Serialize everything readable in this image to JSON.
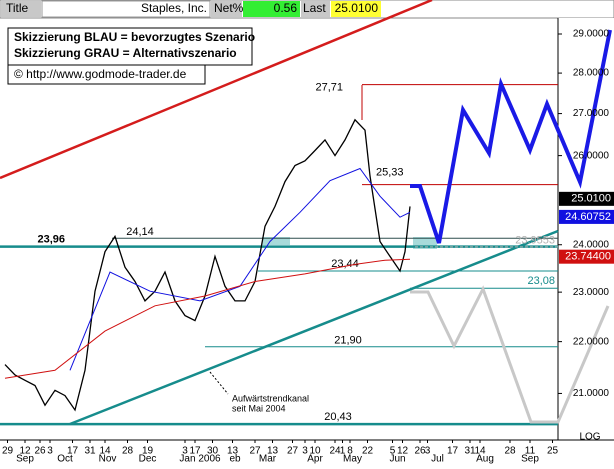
{
  "chart_data": {
    "type": "line",
    "header": {
      "title_label": "Title",
      "symbol": "Staples, Inc.",
      "net_label": "Net%",
      "net_value": 0.56,
      "last_label": "Last",
      "last_value": {
        "value": 25.01,
        "label": "25.0100"
      }
    },
    "legend_notes": [
      "Skizzierung BLAU = bevorzugtes Szenario",
      "Skizzierung GRAU = Alternativszenario"
    ],
    "copyright": "© http://www.godmode-trader.de",
    "annotation": [
      "Aufwärtstrendkanal",
      "seit Mai 2004"
    ],
    "log_scale": true,
    "log_label": "LOG",
    "xlim": [
      -2,
      221.2
    ],
    "xticks": [
      {
        "value": 1,
        "label": "29"
      },
      {
        "value": 8,
        "label": "12"
      },
      {
        "value": 14,
        "label": "26"
      },
      {
        "value": 18,
        "label": "3"
      },
      {
        "value": 27,
        "label": "17"
      },
      {
        "value": 34,
        "label": "31"
      },
      {
        "value": 40,
        "label": "14"
      },
      {
        "value": 49,
        "label": "28"
      },
      {
        "value": 57,
        "label": "19"
      },
      {
        "value": 72,
        "label": "3"
      },
      {
        "value": 76,
        "label": "17"
      },
      {
        "value": 83,
        "label": "30"
      },
      {
        "value": 91,
        "label": "13"
      },
      {
        "value": 100,
        "label": "27"
      },
      {
        "value": 107,
        "label": "13"
      },
      {
        "value": 115,
        "label": "27"
      },
      {
        "value": 120,
        "label": "3"
      },
      {
        "value": 124,
        "label": "10"
      },
      {
        "value": 132,
        "label": "24"
      },
      {
        "value": 135,
        "label": "1"
      },
      {
        "value": 138,
        "label": "8"
      },
      {
        "value": 145,
        "label": "22"
      },
      {
        "value": 155,
        "label": "5"
      },
      {
        "value": 159,
        "label": "12"
      },
      {
        "value": 166,
        "label": "26"
      },
      {
        "value": 169,
        "label": "3"
      },
      {
        "value": 179,
        "label": "17"
      },
      {
        "value": 186,
        "label": "31"
      },
      {
        "value": 190,
        "label": "14"
      },
      {
        "value": 202,
        "label": "28"
      },
      {
        "value": 210,
        "label": "11"
      },
      {
        "value": 219,
        "label": "25"
      }
    ],
    "month_ticks": [
      {
        "value": 8,
        "label": "Sep"
      },
      {
        "value": 24,
        "label": "Oct"
      },
      {
        "value": 41,
        "label": "Nov"
      },
      {
        "value": 57,
        "label": "Dec"
      },
      {
        "value": 78,
        "label": "Jan 2006"
      },
      {
        "value": 92,
        "label": "eb"
      },
      {
        "value": 105,
        "label": "Mar"
      },
      {
        "value": 124,
        "label": "Apr"
      },
      {
        "value": 139,
        "label": "May"
      },
      {
        "value": 157,
        "label": "Jun"
      },
      {
        "value": 173,
        "label": "Jul"
      },
      {
        "value": 192,
        "label": "Aug"
      },
      {
        "value": 210,
        "label": "Sep"
      }
    ],
    "ylim": [
      20.14,
      29.42
    ],
    "yticks": [
      {
        "value": 21,
        "label": "21.0000"
      },
      {
        "value": 22,
        "label": "22.0000"
      },
      {
        "value": 23,
        "label": "23.0000"
      },
      {
        "value": 24,
        "label": "24.0000"
      },
      {
        "value": 26,
        "label": "26.0000"
      },
      {
        "value": 27,
        "label": "27.0000"
      },
      {
        "value": 28,
        "label": "28.0000"
      },
      {
        "value": 29,
        "label": "29.0000"
      }
    ],
    "series": [
      {
        "color": "#000000",
        "x": [
          0,
          4,
          8,
          12,
          16,
          20,
          24,
          28,
          32,
          36,
          40,
          44,
          48,
          52,
          56,
          60,
          64,
          68,
          72,
          76,
          80,
          84,
          88,
          92,
          96,
          100,
          104,
          108,
          112,
          116,
          120,
          124,
          128,
          132,
          136,
          140,
          144,
          146,
          150,
          154,
          158,
          160,
          162
        ],
        "values": [
          21.55,
          21.35,
          21.25,
          21.15,
          20.78,
          21.06,
          20.96,
          20.69,
          21.44,
          23.02,
          23.85,
          24.18,
          23.52,
          23.22,
          22.82,
          23.02,
          23.42,
          22.82,
          22.52,
          22.42,
          22.92,
          23.75,
          23.12,
          22.82,
          22.82,
          23.22,
          24.4,
          24.84,
          25.4,
          25.77,
          25.88,
          26.12,
          26.37,
          26.0,
          26.37,
          26.85,
          26.6,
          25.53,
          24.07,
          23.75,
          23.44,
          23.85,
          24.84
        ],
        "last_value": {
          "value": 25.01,
          "label": "25.0100"
        }
      },
      {
        "color": "#1010e0",
        "x": [
          26,
          42,
          58,
          78,
          94,
          106,
          118,
          130,
          142,
          150,
          158,
          162
        ],
        "values": [
          21.44,
          23.42,
          23.02,
          22.82,
          23.12,
          24.07,
          24.71,
          25.42,
          25.7,
          25.07,
          24.6,
          24.71
        ],
        "last_value": {
          "value": 24.60752,
          "label": "24.60752"
        }
      },
      {
        "color": "#d01010",
        "x": [
          0,
          20,
          40,
          60,
          80,
          100,
          120,
          140,
          152,
          162
        ],
        "values": [
          21.29,
          21.44,
          22.21,
          22.72,
          22.92,
          23.22,
          23.38,
          23.58,
          23.67,
          23.69
        ],
        "last_value": {
          "value": 23.744,
          "label": "23.74400"
        }
      }
    ],
    "levels": [
      {
        "value": 27.71,
        "label": "27,71",
        "color": "#c00000"
      },
      {
        "value": 25.33,
        "label": "25,33",
        "color": "#c00000"
      },
      {
        "value": 24.14,
        "label": "24,14",
        "color": "#2f4f4f"
      },
      {
        "value": 23.96,
        "label": "23,96",
        "color": "#168c8c"
      },
      {
        "value": 23.9553,
        "label": "23.9553",
        "color": "#b0b0b0"
      },
      {
        "value": 23.44,
        "label": "23,44",
        "color": "#168c8c"
      },
      {
        "value": 23.08,
        "label": "23,08",
        "color": "#168c8c"
      },
      {
        "value": 21.9,
        "label": "21,90",
        "color": "#168c8c"
      },
      {
        "value": 20.43,
        "label": "20,43",
        "color": "#168c8c"
      }
    ]
  }
}
